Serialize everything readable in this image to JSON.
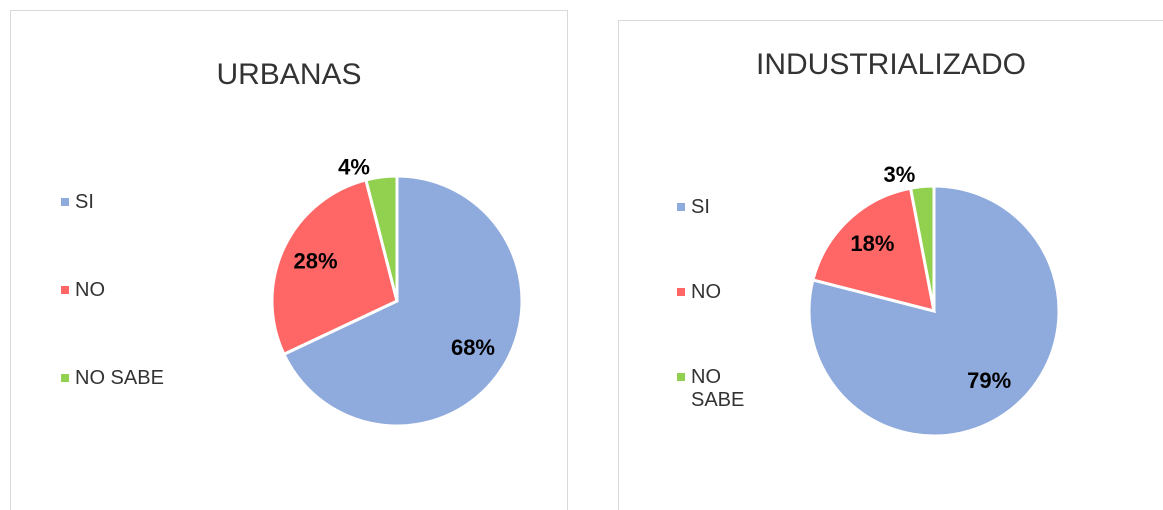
{
  "chart_data": [
    {
      "type": "pie",
      "title": "URBANAS",
      "categories": [
        "SI",
        "NO",
        "NO SABE"
      ],
      "values": [
        68,
        28,
        4
      ],
      "value_labels": [
        "68%",
        "28%",
        "4%"
      ],
      "colors": [
        "#8faadc",
        "#ff6666",
        "#92d050"
      ],
      "legend": "left"
    },
    {
      "type": "pie",
      "title": "INDUSTRIALIZADO",
      "categories": [
        "SI",
        "NO",
        "NO SABE"
      ],
      "values": [
        79,
        18,
        3
      ],
      "value_labels": [
        "79%",
        "18%",
        "3%"
      ],
      "colors": [
        "#8faadc",
        "#ff6666",
        "#92d050"
      ],
      "legend": "left"
    }
  ]
}
